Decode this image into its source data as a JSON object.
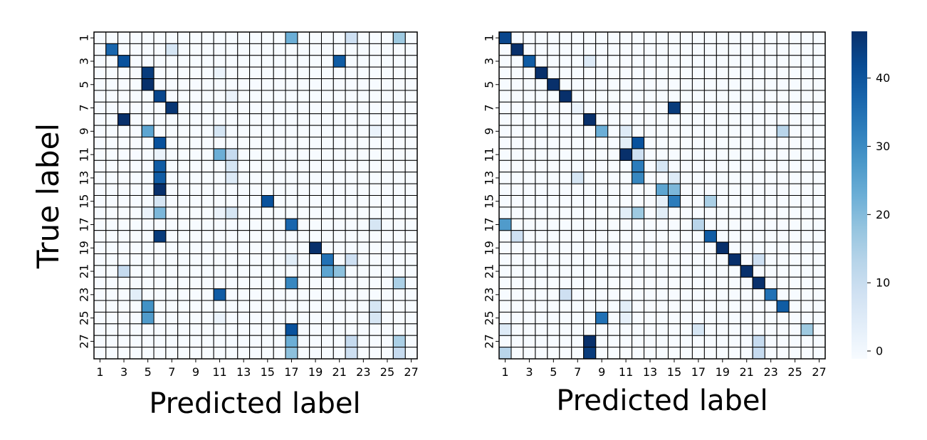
{
  "chart_data": [
    {
      "type": "heatmap",
      "title": "",
      "xlabel": "Predicted label",
      "ylabel": "True label",
      "x_tick_labels": [
        "1",
        "3",
        "5",
        "7",
        "9",
        "11",
        "13",
        "15",
        "17",
        "19",
        "21",
        "23",
        "25",
        "27"
      ],
      "y_tick_labels": [
        "1",
        "3",
        "5",
        "7",
        "9",
        "11",
        "13",
        "15",
        "17",
        "19",
        "21",
        "23",
        "25",
        "27"
      ],
      "size": 27,
      "colormap": "Blues",
      "cells": [
        {
          "row": 1,
          "col": 17,
          "value": 24
        },
        {
          "row": 1,
          "col": 22,
          "value": 10
        },
        {
          "row": 1,
          "col": 26,
          "value": 18
        },
        {
          "row": 2,
          "col": 2,
          "value": 38
        },
        {
          "row": 2,
          "col": 7,
          "value": 8
        },
        {
          "row": 3,
          "col": 3,
          "value": 42
        },
        {
          "row": 3,
          "col": 21,
          "value": 40
        },
        {
          "row": 4,
          "col": 5,
          "value": 46
        },
        {
          "row": 4,
          "col": 11,
          "value": 3
        },
        {
          "row": 5,
          "col": 5,
          "value": 48
        },
        {
          "row": 6,
          "col": 6,
          "value": 44
        },
        {
          "row": 6,
          "col": 12,
          "value": 3
        },
        {
          "row": 7,
          "col": 7,
          "value": 47
        },
        {
          "row": 8,
          "col": 3,
          "value": 48
        },
        {
          "row": 9,
          "col": 5,
          "value": 26
        },
        {
          "row": 9,
          "col": 11,
          "value": 8
        },
        {
          "row": 9,
          "col": 24,
          "value": 3
        },
        {
          "row": 10,
          "col": 6,
          "value": 42
        },
        {
          "row": 11,
          "col": 6,
          "value": 3
        },
        {
          "row": 11,
          "col": 11,
          "value": 24
        },
        {
          "row": 11,
          "col": 12,
          "value": 12
        },
        {
          "row": 12,
          "col": 6,
          "value": 40
        },
        {
          "row": 12,
          "col": 12,
          "value": 8
        },
        {
          "row": 13,
          "col": 6,
          "value": 40
        },
        {
          "row": 13,
          "col": 12,
          "value": 6
        },
        {
          "row": 14,
          "col": 6,
          "value": 48
        },
        {
          "row": 15,
          "col": 6,
          "value": 8
        },
        {
          "row": 15,
          "col": 15,
          "value": 42
        },
        {
          "row": 16,
          "col": 6,
          "value": 22
        },
        {
          "row": 16,
          "col": 12,
          "value": 8
        },
        {
          "row": 16,
          "col": 5,
          "value": 3
        },
        {
          "row": 16,
          "col": 11,
          "value": 3
        },
        {
          "row": 17,
          "col": 17,
          "value": 38
        },
        {
          "row": 17,
          "col": 24,
          "value": 8
        },
        {
          "row": 18,
          "col": 6,
          "value": 46
        },
        {
          "row": 19,
          "col": 19,
          "value": 48
        },
        {
          "row": 20,
          "col": 17,
          "value": 5
        },
        {
          "row": 20,
          "col": 20,
          "value": 36
        },
        {
          "row": 20,
          "col": 22,
          "value": 10
        },
        {
          "row": 21,
          "col": 3,
          "value": 12
        },
        {
          "row": 21,
          "col": 20,
          "value": 26
        },
        {
          "row": 21,
          "col": 21,
          "value": 20
        },
        {
          "row": 22,
          "col": 17,
          "value": 32
        },
        {
          "row": 22,
          "col": 26,
          "value": 16
        },
        {
          "row": 23,
          "col": 4,
          "value": 5
        },
        {
          "row": 23,
          "col": 11,
          "value": 40
        },
        {
          "row": 24,
          "col": 5,
          "value": 30
        },
        {
          "row": 24,
          "col": 24,
          "value": 8
        },
        {
          "row": 25,
          "col": 5,
          "value": 28
        },
        {
          "row": 25,
          "col": 11,
          "value": 3
        },
        {
          "row": 25,
          "col": 24,
          "value": 8
        },
        {
          "row": 26,
          "col": 17,
          "value": 42
        },
        {
          "row": 27,
          "col": 17,
          "value": 24
        },
        {
          "row": 27,
          "col": 22,
          "value": 12
        },
        {
          "row": 27,
          "col": 26,
          "value": 16
        },
        {
          "row": 28,
          "col": 17,
          "value": 20
        },
        {
          "row": 28,
          "col": 22,
          "value": 10
        },
        {
          "row": 28,
          "col": 26,
          "value": 12
        }
      ]
    },
    {
      "type": "heatmap",
      "title": "",
      "xlabel": "Predicted label",
      "ylabel": "",
      "x_tick_labels": [
        "1",
        "3",
        "5",
        "7",
        "9",
        "11",
        "13",
        "15",
        "17",
        "19",
        "21",
        "23",
        "25",
        "27"
      ],
      "y_tick_labels": [
        "1",
        "3",
        "5",
        "7",
        "9",
        "11",
        "13",
        "15",
        "17",
        "19",
        "21",
        "23",
        "25",
        "27"
      ],
      "size": 27,
      "colormap": "Blues",
      "colorbar": {
        "ticks": [
          "0",
          "10",
          "20",
          "30",
          "40"
        ],
        "range": [
          0,
          48
        ]
      },
      "cells": [
        {
          "row": 1,
          "col": 1,
          "value": 44
        },
        {
          "row": 2,
          "col": 2,
          "value": 48
        },
        {
          "row": 3,
          "col": 3,
          "value": 40
        },
        {
          "row": 3,
          "col": 8,
          "value": 6
        },
        {
          "row": 4,
          "col": 4,
          "value": 48
        },
        {
          "row": 5,
          "col": 5,
          "value": 48
        },
        {
          "row": 6,
          "col": 6,
          "value": 48
        },
        {
          "row": 7,
          "col": 15,
          "value": 46
        },
        {
          "row": 7,
          "col": 7,
          "value": 3
        },
        {
          "row": 8,
          "col": 8,
          "value": 48
        },
        {
          "row": 9,
          "col": 9,
          "value": 24
        },
        {
          "row": 9,
          "col": 11,
          "value": 6
        },
        {
          "row": 9,
          "col": 24,
          "value": 14
        },
        {
          "row": 10,
          "col": 12,
          "value": 42
        },
        {
          "row": 10,
          "col": 11,
          "value": 5
        },
        {
          "row": 11,
          "col": 11,
          "value": 48
        },
        {
          "row": 11,
          "col": 12,
          "value": 10
        },
        {
          "row": 12,
          "col": 12,
          "value": 34
        },
        {
          "row": 12,
          "col": 14,
          "value": 8
        },
        {
          "row": 13,
          "col": 7,
          "value": 8
        },
        {
          "row": 13,
          "col": 12,
          "value": 32
        },
        {
          "row": 13,
          "col": 15,
          "value": 6
        },
        {
          "row": 14,
          "col": 14,
          "value": 26
        },
        {
          "row": 14,
          "col": 15,
          "value": 22
        },
        {
          "row": 15,
          "col": 15,
          "value": 34
        },
        {
          "row": 15,
          "col": 18,
          "value": 16
        },
        {
          "row": 15,
          "col": 14,
          "value": 4
        },
        {
          "row": 16,
          "col": 12,
          "value": 18
        },
        {
          "row": 16,
          "col": 11,
          "value": 5
        },
        {
          "row": 16,
          "col": 14,
          "value": 5
        },
        {
          "row": 17,
          "col": 1,
          "value": 28
        },
        {
          "row": 17,
          "col": 17,
          "value": 14
        },
        {
          "row": 18,
          "col": 2,
          "value": 10
        },
        {
          "row": 18,
          "col": 18,
          "value": 40
        },
        {
          "row": 19,
          "col": 19,
          "value": 48
        },
        {
          "row": 20,
          "col": 20,
          "value": 48
        },
        {
          "row": 20,
          "col": 22,
          "value": 10
        },
        {
          "row": 21,
          "col": 21,
          "value": 48
        },
        {
          "row": 22,
          "col": 22,
          "value": 48
        },
        {
          "row": 23,
          "col": 6,
          "value": 10
        },
        {
          "row": 23,
          "col": 23,
          "value": 36
        },
        {
          "row": 24,
          "col": 24,
          "value": 40
        },
        {
          "row": 24,
          "col": 11,
          "value": 5
        },
        {
          "row": 25,
          "col": 9,
          "value": 36
        },
        {
          "row": 25,
          "col": 11,
          "value": 4
        },
        {
          "row": 26,
          "col": 1,
          "value": 6
        },
        {
          "row": 26,
          "col": 17,
          "value": 8
        },
        {
          "row": 26,
          "col": 26,
          "value": 18
        },
        {
          "row": 27,
          "col": 8,
          "value": 48
        },
        {
          "row": 27,
          "col": 22,
          "value": 12
        },
        {
          "row": 28,
          "col": 1,
          "value": 14
        },
        {
          "row": 28,
          "col": 8,
          "value": 46
        },
        {
          "row": 28,
          "col": 22,
          "value": 12
        }
      ]
    }
  ]
}
